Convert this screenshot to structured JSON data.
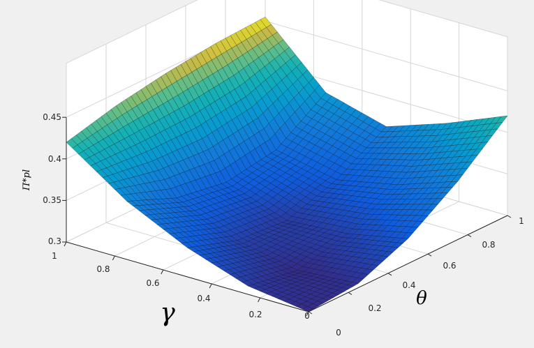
{
  "chart_data": {
    "type": "surface",
    "title": "",
    "zlabel": "Π*pl",
    "xlabel": "γ",
    "ylabel": "θ",
    "x_ticks": [
      0,
      0.2,
      0.4,
      0.6,
      0.8,
      1
    ],
    "y_ticks": [
      0,
      0.2,
      0.4,
      0.6,
      0.8,
      1
    ],
    "z_ticks": [
      0.3,
      0.35,
      0.4,
      0.45
    ],
    "x_tick_labels": [
      "0",
      "0.2",
      "0.4",
      "0.6",
      "0.8",
      "1"
    ],
    "y_tick_labels": [
      "0",
      "0.2",
      "0.4",
      "0.6",
      "0.8",
      "1"
    ],
    "z_tick_labels": [
      "0.3",
      "0.35",
      "0.4",
      "0.45"
    ],
    "xlim": [
      0,
      1
    ],
    "ylim": [
      0,
      1
    ],
    "zlim": [
      0.3,
      0.45
    ],
    "grid": true,
    "colormap": "parula",
    "background_color": "#f0f0f0",
    "z_grid": {
      "gamma": [
        0,
        0.25,
        0.5,
        0.75,
        1
      ],
      "theta": [
        0,
        0.25,
        0.5,
        0.75,
        1
      ],
      "values": [
        [
          0.3,
          0.305,
          0.33,
          0.37,
          0.42
        ],
        [
          0.31,
          0.3,
          0.315,
          0.345,
          0.39
        ],
        [
          0.335,
          0.315,
          0.31,
          0.33,
          0.365
        ],
        [
          0.37,
          0.345,
          0.335,
          0.345,
          0.385
        ],
        [
          0.42,
          0.435,
          0.445,
          0.452,
          0.455
        ]
      ]
    }
  }
}
